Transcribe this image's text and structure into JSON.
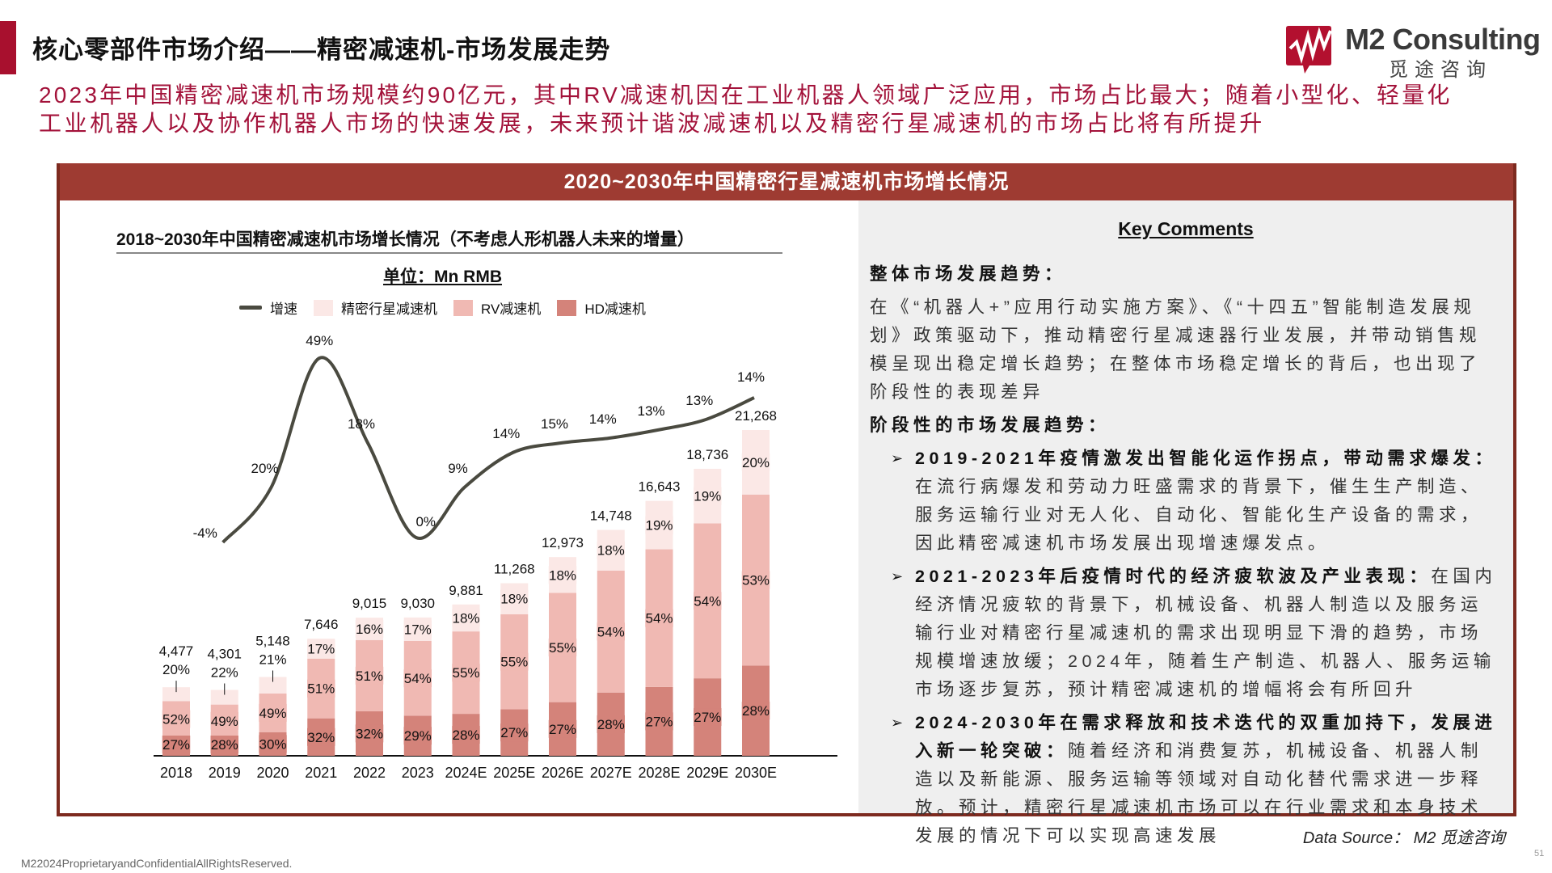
{
  "header": {
    "title": "核心零部件市场介绍——精密减速机-市场发展走势",
    "summary_lines": [
      "2023年中国精密减速机市场规模约90亿元，其中RV减速机因在工业机器人领域广泛应用，市场占比最大；随着小型化、轻量化",
      "工业机器人以及协作机器人市场的快速发展，未来预计谐波减速机以及精密行星减速机的市场占比将有所提升"
    ],
    "logo": {
      "en": "M2 Consulting",
      "cn": "觅途咨询"
    }
  },
  "panel": {
    "title": "2020~2030年中国精密行星减速机市场增长情况"
  },
  "chart_data": {
    "type": "bar",
    "stacked": true,
    "title": "2018~2030年中国精密减速机市场增长情况（不考虑人形机器人未来的增量）",
    "unit": "单位：Mn RMB",
    "legend_position": "top",
    "grid": false,
    "categories": [
      "2018",
      "2019",
      "2020",
      "2021",
      "2022",
      "2023",
      "2024E",
      "2025E",
      "2026E",
      "2027E",
      "2028E",
      "2029E",
      "2030E"
    ],
    "totals": [
      4477,
      4301,
      5148,
      7646,
      9015,
      9030,
      9881,
      11268,
      12973,
      14748,
      16643,
      18736,
      21268
    ],
    "total_labels": [
      "4,477",
      "4,301",
      "5,148",
      "7,646",
      "9,015",
      "9,030",
      "9,881",
      "11,268",
      "12,973",
      "14,748",
      "16,643",
      "18,736",
      "21,268"
    ],
    "series": [
      {
        "name": "HD减速机",
        "color": "#d4837a",
        "share_pct": [
          27,
          28,
          30,
          32,
          32,
          29,
          28,
          27,
          27,
          28,
          27,
          27,
          28
        ]
      },
      {
        "name": "RV减速机",
        "color": "#f0b9b3",
        "share_pct": [
          52,
          49,
          49,
          51,
          51,
          54,
          55,
          55,
          55,
          54,
          54,
          54,
          53
        ]
      },
      {
        "name": "精密行星减速机",
        "color": "#fbe8e6",
        "share_pct": [
          20,
          22,
          21,
          17,
          16,
          17,
          18,
          18,
          18,
          18,
          19,
          19,
          20
        ]
      }
    ],
    "line": {
      "name": "增速",
      "color": "#4a4a40",
      "categories": [
        "2019",
        "2020",
        "2021",
        "2022",
        "2023",
        "2024E",
        "2025E",
        "2026E",
        "2027E",
        "2028E",
        "2029E",
        "2030E"
      ],
      "values_pct": [
        -4,
        20,
        49,
        18,
        0,
        9,
        14,
        15,
        14,
        13,
        13,
        14
      ]
    }
  },
  "comments": {
    "title": "Key Comments",
    "h1": "整体市场发展趋势：",
    "p1": "在《“机器人+”应用行动实施方案》、《“十四五”智能制造发展规划》政策驱动下，推动精密行星减速器行业发展，并带动销售规模呈现出稳定增长趋势；在整体市场稳定增长的背后，也出现了阶段性的表现差异",
    "h2": "阶段性的市场发展趋势：",
    "bullets": [
      {
        "bold": "2019-2021年疫情激发出智能化运作拐点，带动需求爆发：",
        "text": "在流行病爆发和劳动力旺盛需求的背景下，催生生产制造、服务运输行业对无人化、自动化、智能化生产设备的需求，因此精密减速机市场发展出现增速爆发点。"
      },
      {
        "bold": "2021-2023年后疫情时代的经济疲软波及产业表现：",
        "text": "在国内经济情况疲软的背景下，机械设备、机器人制造以及服务运输行业对精密行星减速机的需求出现明显下滑的趋势，市场规模增速放缓；2024年，随着生产制造、机器人、服务运输市场逐步复苏，预计精密减速机的增幅将会有所回升"
      },
      {
        "bold": "2024-2030年在需求释放和技术迭代的双重加持下，发展进入新一轮突破：",
        "text": "随着经济和消费复苏，机械设备、机器人制造以及新能源、服务运输等领域对自动化替代需求进一步释放。预计，精密行星减速机市场可以在行业需求和本身技术发展的情况下可以实现高速发展"
      }
    ]
  },
  "footer": {
    "source": "Data Source： M2 觅途咨询",
    "copyright": "M22024ProprietaryandConfidentialAllRightsReserved.",
    "page": "51"
  }
}
